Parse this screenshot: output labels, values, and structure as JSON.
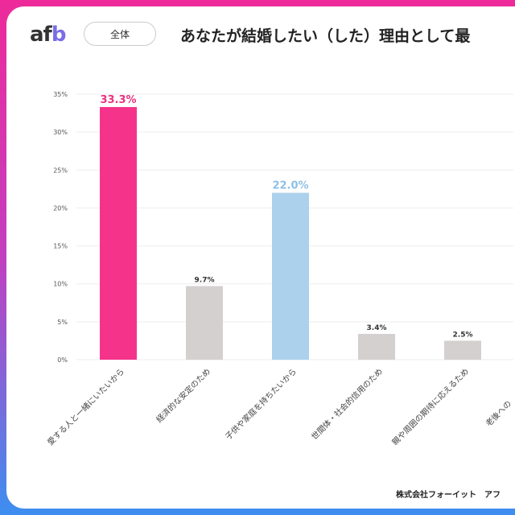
{
  "header": {
    "logo": "afb",
    "logo_accent": "b",
    "filter_pill": "全体",
    "title": "あなたが結婚したい（した）理由として最"
  },
  "footer": {
    "credit": "株式会社フォーイット　アフ"
  },
  "colors": {
    "highlight1": "#f5338a",
    "highlight2": "#acd1ec",
    "default": "#d4d0d0"
  },
  "chart_data": {
    "type": "bar",
    "ylim": [
      0,
      35
    ],
    "yticks": [
      "0%",
      "5%",
      "10%",
      "15%",
      "20%",
      "25%",
      "30%",
      "35%"
    ],
    "grid": true,
    "categories": [
      "愛する人と一緒にいたいから",
      "経済的な安定のため",
      "子供や家庭を持ちたいから",
      "世間体・社会的信用のため",
      "親や周囲の期待に応えるため",
      "老後への"
    ],
    "values": [
      33.3,
      9.7,
      22.0,
      3.4,
      2.5,
      null
    ],
    "labels": [
      "33.3%",
      "9.7%",
      "22.0%",
      "3.4%",
      "2.5%",
      ""
    ],
    "bar_colors": [
      "#f5338a",
      "#d4d0d0",
      "#acd1ec",
      "#d4d0d0",
      "#d4d0d0",
      "#d4d0d0"
    ]
  }
}
